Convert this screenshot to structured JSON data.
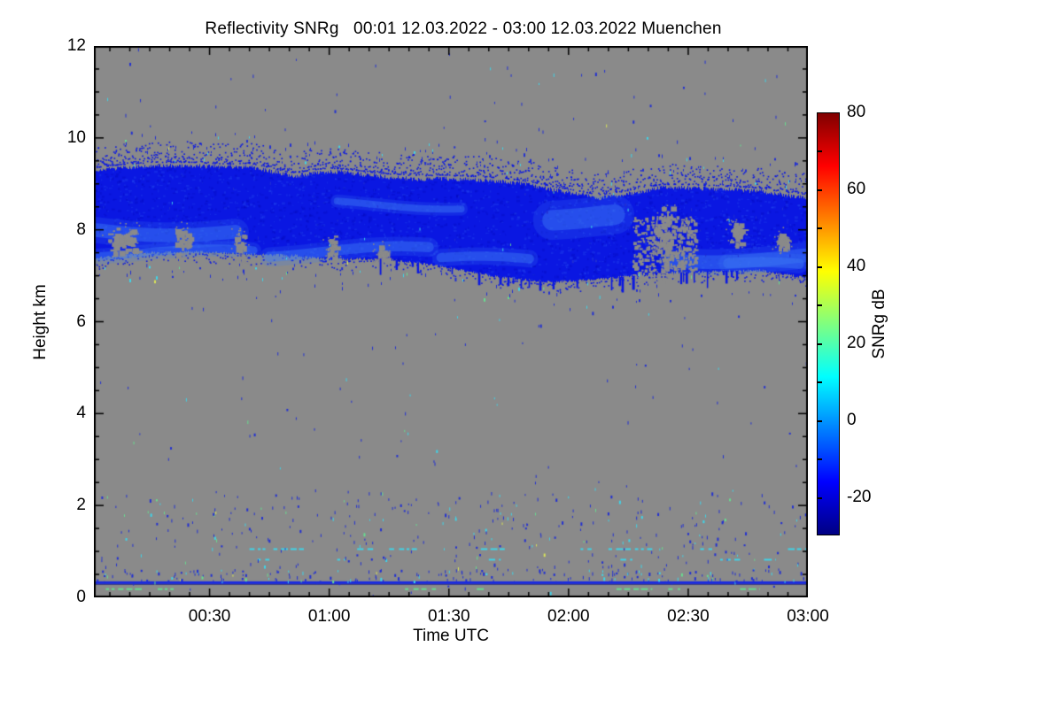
{
  "page": {
    "background": "#ffffff"
  },
  "chart_data": {
    "type": "heatmap",
    "title": "Reflectivity SNRg   00:01 12.03.2022 - 03:00 12.03.2022 Muenchen",
    "xlabel": "Time UTC",
    "ylabel": "Height km",
    "x_start_label": "00:01",
    "x_end_label": "03:00",
    "x_minutes": [
      1,
      180
    ],
    "x_major_ticks": [
      {
        "minute": 30,
        "label": "00:30"
      },
      {
        "minute": 60,
        "label": "01:00"
      },
      {
        "minute": 90,
        "label": "01:30"
      },
      {
        "minute": 120,
        "label": "02:00"
      },
      {
        "minute": 150,
        "label": "02:30"
      },
      {
        "minute": 180,
        "label": "03:00"
      }
    ],
    "x_minor_step_minutes": 5,
    "ylim": [
      0,
      12
    ],
    "y_major_ticks": [
      0,
      2,
      4,
      6,
      8,
      10,
      12
    ],
    "y_minor_step_km": 0.5,
    "grid": "off",
    "colors": {
      "background_no_signal": "#8a8a8a",
      "band_core": "#0a17e2",
      "band_light": "#2b55ee",
      "band_bright": "#3d7bf4",
      "noise_blue": "#2230d2",
      "noise_cyan": "#3fd4e8",
      "noise_green": "#68dd90",
      "noise_yellow": "#d8e35a",
      "surface_line": "#1a2ae0",
      "axis": "#000000"
    },
    "colorbar": {
      "label": "SNRg dB",
      "min": -30,
      "max": 80,
      "tick_labels": [
        80,
        60,
        40,
        20,
        0,
        -20
      ],
      "minor_step": 10,
      "colormap": "jet",
      "stops": [
        {
          "pos": 0.0,
          "color": "#000083"
        },
        {
          "pos": 0.125,
          "color": "#0000ff"
        },
        {
          "pos": 0.375,
          "color": "#00ffff"
        },
        {
          "pos": 0.625,
          "color": "#ffff00"
        },
        {
          "pos": 0.875,
          "color": "#ff0000"
        },
        {
          "pos": 1.0,
          "color": "#800000"
        }
      ]
    },
    "features": {
      "seed": 1337,
      "cloud_band": {
        "description": "Elevated cloud layer, SNRg approx -25 to -8 dB, between ~7 and ~9.5 km",
        "points": [
          {
            "t": 1,
            "top": 9.25,
            "bot": 7.32
          },
          {
            "t": 13,
            "top": 9.32,
            "bot": 7.4
          },
          {
            "t": 26,
            "top": 9.44,
            "bot": 7.45
          },
          {
            "t": 40,
            "top": 9.5,
            "bot": 7.45
          },
          {
            "t": 51,
            "top": 9.25,
            "bot": 7.42
          },
          {
            "t": 60,
            "top": 9.34,
            "bot": 7.3
          },
          {
            "t": 73,
            "top": 9.28,
            "bot": 7.26
          },
          {
            "t": 88,
            "top": 9.22,
            "bot": 7.12
          },
          {
            "t": 101,
            "top": 9.05,
            "bot": 6.99
          },
          {
            "t": 115,
            "top": 8.86,
            "bot": 6.9
          },
          {
            "t": 128,
            "top": 8.72,
            "bot": 6.93
          },
          {
            "t": 143,
            "top": 8.9,
            "bot": 7.0
          },
          {
            "t": 155,
            "top": 8.88,
            "bot": 7.07
          },
          {
            "t": 168,
            "top": 8.95,
            "bot": 7.15
          },
          {
            "t": 180,
            "top": 8.85,
            "bot": 7.0
          }
        ],
        "edge_speckle_km": 0.45
      },
      "bright_wisps": [
        {
          "t0": 1,
          "t1": 38,
          "km": 8.0,
          "th": 0.3
        },
        {
          "t0": 1,
          "t1": 42,
          "km": 7.55,
          "th": 0.18
        },
        {
          "t0": 45,
          "t1": 85,
          "km": 7.5,
          "th": 0.22
        },
        {
          "t0": 62,
          "t1": 95,
          "km": 8.5,
          "th": 0.15
        },
        {
          "t0": 88,
          "t1": 112,
          "km": 7.35,
          "th": 0.2
        },
        {
          "t0": 116,
          "t1": 133,
          "km": 8.35,
          "th": 0.45
        },
        {
          "t0": 146,
          "t1": 180,
          "km": 7.35,
          "th": 0.3
        },
        {
          "t0": 160,
          "t1": 179,
          "km": 7.15,
          "th": 0.22
        }
      ],
      "gray_holes": [
        {
          "t0": 3,
          "t1": 13,
          "km0": 7.5,
          "km1": 8.1
        },
        {
          "t0": 21,
          "t1": 25,
          "km0": 7.45,
          "km1": 8.15
        },
        {
          "t0": 36,
          "t1": 39,
          "km0": 7.2,
          "km1": 8.0
        },
        {
          "t0": 59,
          "t1": 62,
          "km0": 7.25,
          "km1": 7.9
        },
        {
          "t0": 72,
          "t1": 74,
          "km0": 7.3,
          "km1": 7.7
        },
        {
          "t0": 141,
          "t1": 146,
          "km0": 7.2,
          "km1": 8.6
        },
        {
          "t0": 160,
          "t1": 164,
          "km0": 7.7,
          "km1": 8.2
        },
        {
          "t0": 172,
          "t1": 175,
          "km0": 7.6,
          "km1": 7.95
        }
      ],
      "fragmented_zones": [
        {
          "t0": 136,
          "t1": 152,
          "km0": 6.9,
          "km1": 8.3
        }
      ],
      "drip_fringe": [
        {
          "t0": 60,
          "t1": 140
        },
        {
          "t0": 148,
          "t1": 162
        }
      ],
      "surface_clutter": {
        "km": 0.32,
        "thickness_px": 3
      },
      "dash_rows": [
        {
          "km": 1.05,
          "color": "cyan",
          "segments": [
            [
              40,
              44
            ],
            [
              46,
              54
            ],
            [
              67,
              71
            ],
            [
              75,
              82
            ],
            [
              98,
              104
            ],
            [
              123,
              127
            ],
            [
              130,
              141
            ],
            [
              153,
              156
            ],
            [
              175,
              180
            ]
          ]
        },
        {
          "km": 0.82,
          "color": "cyan",
          "segments": [
            [
              42,
              45
            ],
            [
              62,
              64
            ],
            [
              100,
              103
            ],
            [
              133,
              136
            ],
            [
              158,
              163
            ],
            [
              169,
              172
            ]
          ]
        },
        {
          "km": 0.18,
          "color": "green",
          "segments": [
            [
              4,
              13
            ],
            [
              17,
              21
            ],
            [
              79,
              88
            ],
            [
              97,
              100
            ],
            [
              132,
              141
            ],
            [
              145,
              148
            ],
            [
              163,
              168
            ]
          ]
        }
      ],
      "noise": {
        "uniform_count": 260,
        "lower_2km_count": 330,
        "near_surface_count": 170,
        "band_halo_count": 220,
        "colors_weights": {
          "blue": 0.78,
          "cyan": 0.14,
          "green": 0.06,
          "yellow": 0.02
        }
      }
    }
  }
}
